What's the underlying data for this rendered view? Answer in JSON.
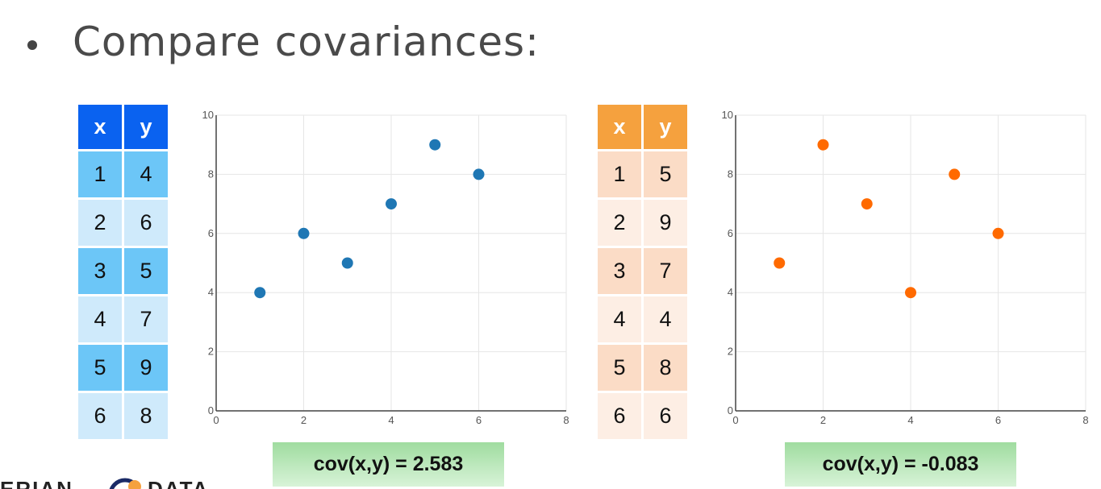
{
  "header": {
    "title": "Compare covariances:"
  },
  "left": {
    "table": {
      "headers": [
        "x",
        "y"
      ],
      "rows": [
        [
          "1",
          "4"
        ],
        [
          "2",
          "6"
        ],
        [
          "3",
          "5"
        ],
        [
          "4",
          "7"
        ],
        [
          "5",
          "9"
        ],
        [
          "6",
          "8"
        ]
      ]
    },
    "covariance_label": "cov(x,y) = 2.583"
  },
  "right": {
    "table": {
      "headers": [
        "x",
        "y"
      ],
      "rows": [
        [
          "1",
          "5"
        ],
        [
          "2",
          "9"
        ],
        [
          "3",
          "7"
        ],
        [
          "4",
          "4"
        ],
        [
          "5",
          "8"
        ],
        [
          "6",
          "6"
        ]
      ]
    },
    "covariance_label": "cov(x,y) = -0.083"
  },
  "logo": {
    "left_text": "ERIAN",
    "right_text": "DATA"
  },
  "colors": {
    "left_points": "#1f77b4",
    "right_points": "#ff6a00",
    "left_header": "#0a62f0",
    "right_header": "#f5a13e"
  },
  "chart_data": [
    {
      "type": "scatter",
      "x": [
        1,
        2,
        3,
        4,
        5,
        6
      ],
      "y": [
        4,
        6,
        5,
        7,
        9,
        8
      ],
      "xlim": [
        0,
        8
      ],
      "ylim": [
        0,
        10
      ],
      "x_ticks": [
        0,
        2,
        4,
        6,
        8
      ],
      "y_ticks": [
        0,
        2,
        4,
        6,
        8,
        10
      ],
      "grid": true,
      "color": "#1f77b4"
    },
    {
      "type": "scatter",
      "x": [
        1,
        2,
        3,
        4,
        5,
        6
      ],
      "y": [
        5,
        9,
        7,
        4,
        8,
        6
      ],
      "xlim": [
        0,
        8
      ],
      "ylim": [
        0,
        10
      ],
      "x_ticks": [
        0,
        2,
        4,
        6,
        8
      ],
      "y_ticks": [
        0,
        2,
        4,
        6,
        8,
        10
      ],
      "grid": true,
      "color": "#ff6a00"
    }
  ]
}
